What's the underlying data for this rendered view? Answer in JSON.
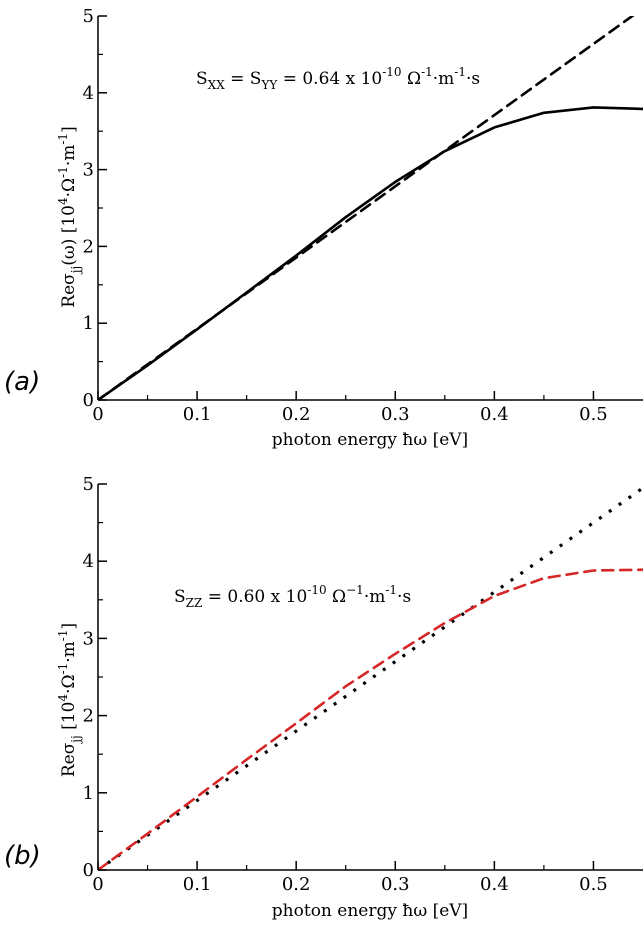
{
  "chart_data": [
    {
      "panel_label": "(a)",
      "type": "line",
      "xlabel": "photon energy ħω [eV]",
      "ylabel": {
        "main": "Reσ",
        "sub": "jj",
        "rest": "(ω) [10",
        "sup1": "4",
        "rest2": "·Ω",
        "sup2": "-1",
        "rest3": "·m",
        "sup3": "-1",
        "rest4": "]"
      },
      "xlim": [
        0,
        0.55
      ],
      "ylim": [
        0,
        5
      ],
      "xticks": [
        "0",
        "0.1",
        "0.2",
        "0.3",
        "0.4",
        "0.5"
      ],
      "yticks": [
        "0",
        "1",
        "2",
        "3",
        "4",
        "5"
      ],
      "annotation": {
        "p1": "S",
        "s1": "XX",
        "p2": " = S",
        "s2": "YY",
        "p3": " = 0.64 x 10",
        "e1": "-10",
        "p4": " Ω",
        "e2": "-1",
        "p5": "·m",
        "e3": "-1",
        "p6": "·s"
      },
      "series": [
        {
          "style": "solid",
          "color": "#000000",
          "x": [
            0,
            0.05,
            0.1,
            0.15,
            0.2,
            0.25,
            0.3,
            0.35,
            0.4,
            0.45,
            0.5,
            0.55
          ],
          "y": [
            0,
            0.45,
            0.92,
            1.4,
            1.88,
            2.38,
            2.84,
            3.24,
            3.55,
            3.74,
            3.81,
            3.79
          ]
        },
        {
          "style": "dashed",
          "color": "#000000",
          "x": [
            0,
            0.55
          ],
          "y": [
            0,
            5.1
          ]
        }
      ]
    },
    {
      "panel_label": "(b)",
      "type": "line",
      "xlabel": "photon energy ħω [eV]",
      "ylabel": {
        "main": "Reσ",
        "sub": "jj",
        "rest": " [10",
        "sup1": "4",
        "rest2": "·Ω",
        "sup2": "-1",
        "rest3": "·m",
        "sup3": "-1",
        "rest4": "]"
      },
      "xlim": [
        0,
        0.55
      ],
      "ylim": [
        0,
        5
      ],
      "xticks": [
        "0",
        "0.1",
        "0.2",
        "0.3",
        "0.4",
        "0.5"
      ],
      "yticks": [
        "0",
        "1",
        "2",
        "3",
        "4",
        "5"
      ],
      "annotation": {
        "p1": "S",
        "s1": "ZZ",
        "p3": " = 0.60 x 10",
        "e1": "-10",
        "p4": " Ω",
        "e2": "−1",
        "p5": "·m",
        "e3": "-1",
        "p6": "·s"
      },
      "series": [
        {
          "style": "dotted",
          "color": "#000000",
          "x": [
            0,
            0.55
          ],
          "y": [
            0,
            4.95
          ]
        },
        {
          "style": "dashed",
          "color": "#d62728",
          "x": [
            0,
            0.05,
            0.1,
            0.15,
            0.2,
            0.25,
            0.3,
            0.35,
            0.4,
            0.45,
            0.5,
            0.55
          ],
          "y": [
            0,
            0.47,
            0.95,
            1.43,
            1.9,
            2.38,
            2.8,
            3.2,
            3.55,
            3.78,
            3.88,
            3.89
          ]
        }
      ]
    }
  ]
}
